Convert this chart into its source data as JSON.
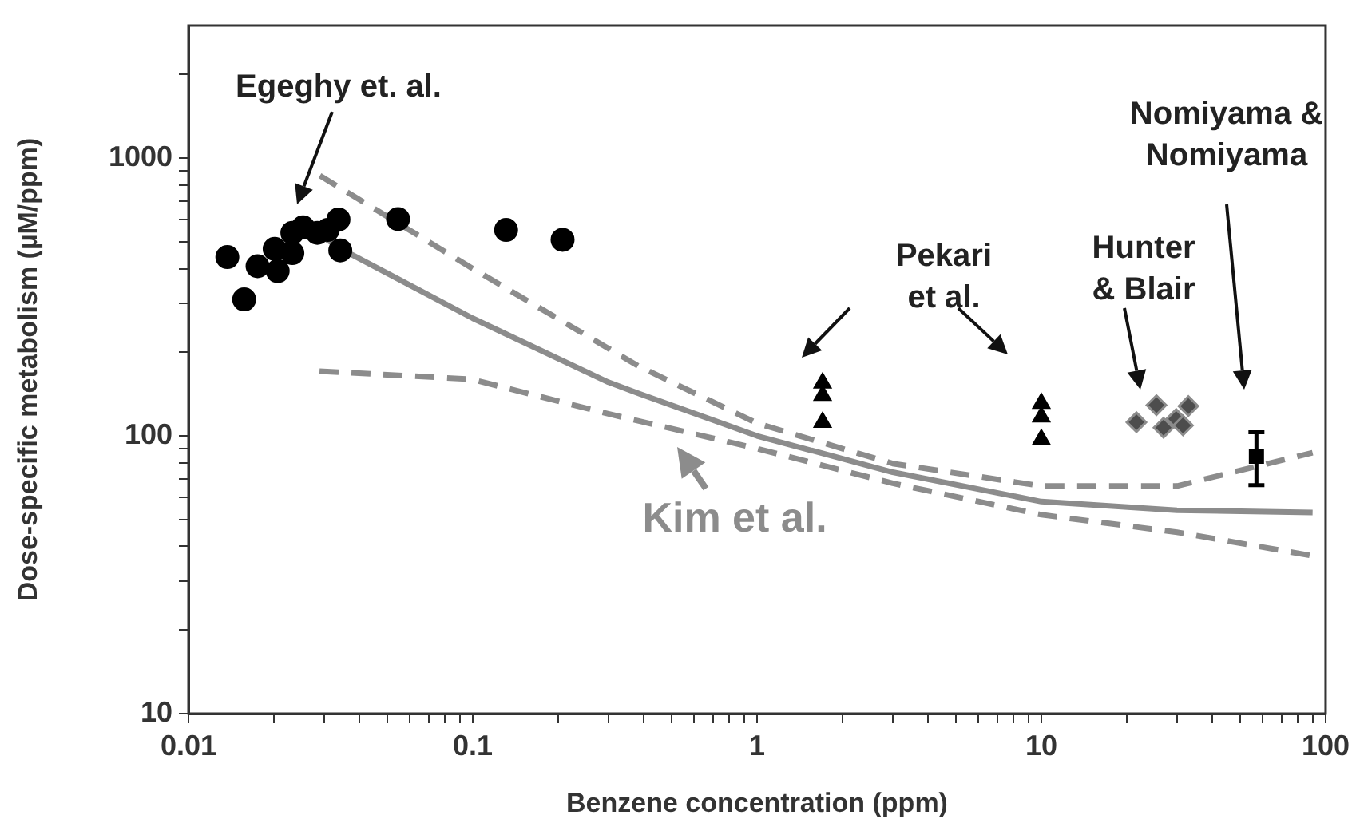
{
  "chart_data": {
    "type": "scatter",
    "xlabel": "Benzene concentration (ppm)",
    "ylabel": "Dose-specific metabolism (µM/ppm)",
    "log": "xy",
    "grid": false,
    "legend": false,
    "xlim": [
      0.01,
      100
    ],
    "xticks": [
      0.01,
      {
        "value": 0.02,
        "label": null
      },
      {
        "value": 0.03,
        "label": null
      },
      {
        "value": 0.04,
        "label": null
      },
      {
        "value": 0.05,
        "label": null
      },
      {
        "value": 0.06,
        "label": null
      },
      {
        "value": 0.07,
        "label": null
      },
      {
        "value": 0.08,
        "label": null
      },
      {
        "value": 0.09,
        "label": null
      },
      0.1,
      {
        "value": 0.2,
        "label": null
      },
      {
        "value": 0.3,
        "label": null
      },
      {
        "value": 0.4,
        "label": null
      },
      {
        "value": 0.5,
        "label": null
      },
      {
        "value": 0.6,
        "label": null
      },
      {
        "value": 0.7,
        "label": null
      },
      {
        "value": 0.8,
        "label": null
      },
      {
        "value": 0.9,
        "label": null
      },
      1,
      {
        "value": 2,
        "label": null
      },
      {
        "value": 3,
        "label": null
      },
      {
        "value": 4,
        "label": null
      },
      {
        "value": 5,
        "label": null
      },
      {
        "value": 6,
        "label": null
      },
      {
        "value": 7,
        "label": null
      },
      {
        "value": 8,
        "label": null
      },
      {
        "value": 9,
        "label": null
      },
      10,
      {
        "value": 20,
        "label": null
      },
      {
        "value": 30,
        "label": null
      },
      {
        "value": 40,
        "label": null
      },
      {
        "value": 50,
        "label": null
      },
      {
        "value": 60,
        "label": null
      },
      {
        "value": 70,
        "label": null
      },
      {
        "value": 80,
        "label": null
      },
      {
        "value": 90,
        "label": null
      },
      100
    ],
    "ylim": [
      10,
      3000
    ],
    "yticks": [
      10,
      {
        "value": 20,
        "label": null
      },
      {
        "value": 30,
        "label": null
      },
      {
        "value": 40,
        "label": null
      },
      {
        "value": 50,
        "label": null
      },
      {
        "value": 60,
        "label": null
      },
      {
        "value": 70,
        "label": null
      },
      {
        "value": 80,
        "label": null
      },
      {
        "value": 90,
        "label": null
      },
      100,
      {
        "value": 200,
        "label": null
      },
      {
        "value": 300,
        "label": null
      },
      {
        "value": 400,
        "label": null
      },
      {
        "value": 500,
        "label": null
      },
      {
        "value": 600,
        "label": null
      },
      {
        "value": 700,
        "label": null
      },
      {
        "value": 800,
        "label": null
      },
      {
        "value": 900,
        "label": null
      },
      1000,
      {
        "value": 2000,
        "label": null
      }
    ],
    "series": [
      {
        "type": "line",
        "color": "#8c8c8c",
        "marker": "none",
        "line_style": "solid",
        "x": [
          0.029,
          0.0367,
          0.1,
          0.3,
          0.384,
          1,
          3,
          10,
          30,
          90
        ],
        "values": [
          526,
          455,
          265,
          156,
          142,
          100,
          74,
          58,
          54,
          53
        ]
      },
      {
        "type": "line",
        "color": "#8c8c8c",
        "marker": "none",
        "line_style": "dashed",
        "x": [
          0.029,
          0.1,
          0.384,
          1,
          3,
          10,
          30,
          90
        ],
        "values": [
          865,
          400,
          178,
          111,
          79.5,
          66,
          66,
          87
        ]
      },
      {
        "type": "line",
        "color": "#8c8c8c",
        "marker": "none",
        "line_style": "dashed",
        "x": [
          0.0289,
          0.0988,
          0.3,
          1,
          3,
          10,
          30,
          90
        ],
        "values": [
          171,
          160,
          120,
          90,
          67.5,
          52,
          45,
          37
        ]
      },
      {
        "color": "#000000",
        "marker": "circle",
        "x": [
          0.0137,
          0.0157,
          0.0175,
          0.0201,
          0.0206,
          0.0232,
          0.0232,
          0.0253,
          0.0284,
          0.0309,
          0.0337,
          0.0342,
          0.0546,
          0.131,
          0.207
        ],
        "values": [
          440,
          310,
          408,
          471,
          392,
          455,
          538,
          563,
          538,
          551,
          601,
          465,
          603,
          551,
          508
        ]
      },
      {
        "color": "#000000",
        "marker": "triangle",
        "x": [
          1.7,
          1.7,
          1.7,
          10,
          10,
          10
        ],
        "values": [
          155,
          140,
          112,
          131,
          117,
          97
        ]
      },
      {
        "color": "#4d4d4d",
        "marker": "diamond",
        "x": [
          21.6,
          25.4,
          26.9,
          29.8,
          31.5,
          32.9
        ],
        "values": [
          112,
          129,
          107,
          115,
          109,
          128
        ]
      },
      {
        "color": "#000000",
        "marker": "square",
        "x": [
          57.1
        ],
        "values": [
          84.5
        ],
        "errors": [
          [
            66.5,
            103
          ]
        ]
      }
    ],
    "annotations": [
      "Egeghy et. al.",
      "Pekari\net al.",
      "Hunter\n& Blair",
      "Nomiyama &\nNomiyama",
      "Kim et al."
    ]
  }
}
